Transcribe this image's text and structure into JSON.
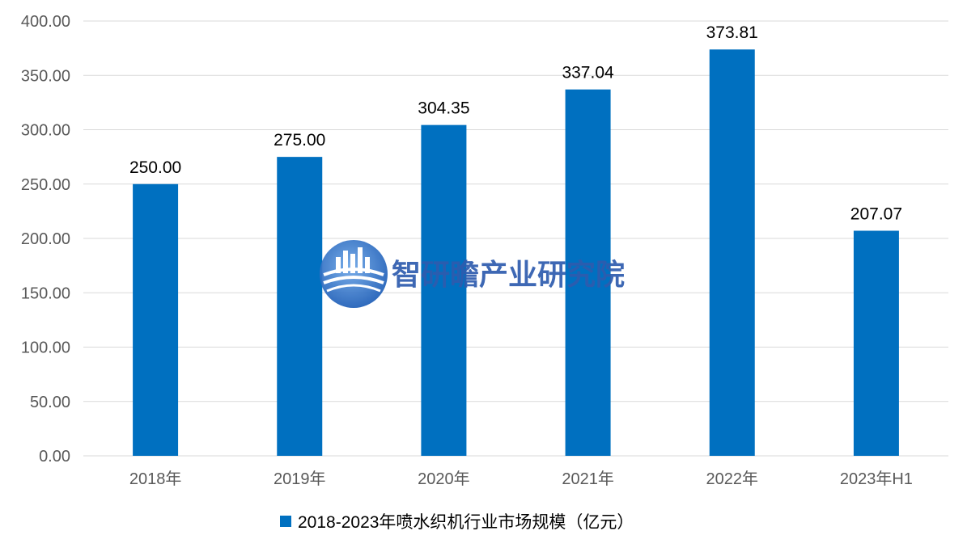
{
  "chart_data": {
    "type": "bar",
    "categories": [
      "2018年",
      "2019年",
      "2020年",
      "2021年",
      "2022年",
      "2023年H1"
    ],
    "series": [
      {
        "name": "2018-2023年喷水织机行业市场规模（亿元）",
        "values": [
          250.0,
          275.0,
          304.35,
          337.04,
          373.81,
          207.07
        ],
        "color": "#0070c0"
      }
    ],
    "data_labels": [
      "250.00",
      "275.00",
      "304.35",
      "337.04",
      "373.81",
      "207.07"
    ],
    "y_ticks": [
      "0.00",
      "50.00",
      "100.00",
      "150.00",
      "200.00",
      "250.00",
      "300.00",
      "350.00",
      "400.00"
    ],
    "ylim": [
      0,
      400
    ],
    "y_step": 50,
    "grid": true,
    "legend_position": "bottom",
    "title": "",
    "xlabel": "",
    "ylabel": ""
  },
  "watermark": {
    "text": "智研瞻产业研究院",
    "icon": "city-skyline-globe-logo"
  },
  "colors": {
    "bar": "#0070c0",
    "grid": "#d9d9d9",
    "tick_text": "#595959",
    "watermark_text": "#2e5cae"
  }
}
